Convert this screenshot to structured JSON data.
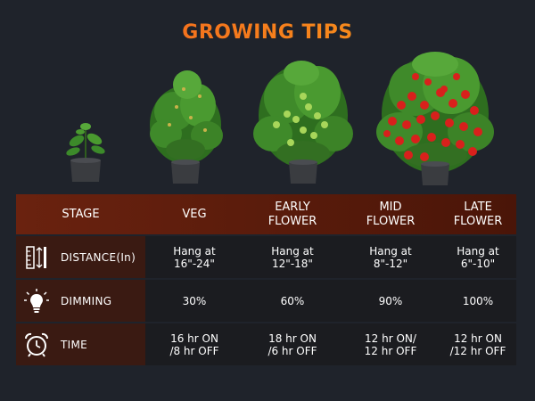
{
  "title": "GROWING TIPS",
  "header": {
    "stage": "STAGE",
    "veg": "VEG",
    "early_flower": "EARLY FLOWER",
    "mid_flower": "MID FLOWER",
    "late_flower": "LATE FLOWER"
  },
  "rows": [
    {
      "icon": "ruler-icon",
      "label": "DISTANCE(In)",
      "values": [
        "Hang at 16\"-24\"",
        "Hang at 12\"-18\"",
        "Hang at 8\"-12\"",
        "Hang at 6\"-10\""
      ]
    },
    {
      "icon": "light-bulb-icon",
      "label": "DIMMING",
      "values": [
        "30%",
        "60%",
        "90%",
        "100%"
      ]
    },
    {
      "icon": "alarm-clock-icon",
      "label": "TIME",
      "values": [
        "16 hr ON /8 hr OFF",
        "18 hr ON /6 hr OFF",
        "12 hr ON/ 12 hr OFF",
        "12 hr ON /12 hr OFF"
      ]
    }
  ],
  "colors": {
    "background": "#1f232b",
    "header": "#5a1c0c",
    "label_cell": "#3a1a12",
    "title_start": "#f45a1e",
    "title_end": "#f7a21b"
  }
}
